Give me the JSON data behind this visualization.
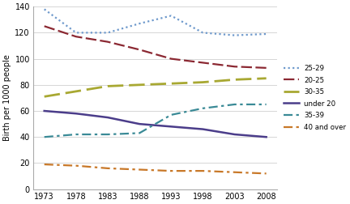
{
  "years": [
    1973,
    1978,
    1983,
    1988,
    1993,
    1998,
    2003,
    2008
  ],
  "series": {
    "25-29": {
      "values": [
        138,
        120,
        120,
        127,
        133,
        120,
        118,
        119
      ],
      "color": "#6e99cc",
      "linestyle": "dotted",
      "linewidth": 1.6
    },
    "20-25": {
      "values": [
        125,
        117,
        113,
        107,
        100,
        97,
        94,
        93
      ],
      "color": "#8b2832",
      "linestyle": "dashed",
      "linewidth": 1.6
    },
    "30-35": {
      "values": [
        71,
        75,
        79,
        80,
        81,
        82,
        84,
        85
      ],
      "color": "#a8a832",
      "linestyle": "dashed",
      "linewidth": 2.0
    },
    "under 20": {
      "values": [
        60,
        58,
        55,
        50,
        48,
        46,
        42,
        40
      ],
      "color": "#4b3d8a",
      "linestyle": "solid",
      "linewidth": 1.8
    },
    "35-39": {
      "values": [
        40,
        42,
        42,
        43,
        57,
        62,
        65,
        65
      ],
      "color": "#3a8a96",
      "linestyle": "dashdot",
      "linewidth": 1.6
    },
    "40 and over": {
      "values": [
        19,
        18,
        16,
        15,
        14,
        14,
        13,
        12
      ],
      "color": "#c87828",
      "linestyle": "dashdot",
      "linewidth": 1.6
    }
  },
  "ylabel": "Birth per 1000 people",
  "ylim": [
    0,
    140
  ],
  "yticks": [
    0,
    20,
    40,
    60,
    80,
    100,
    120,
    140
  ],
  "xticks": [
    1973,
    1978,
    1983,
    1988,
    1993,
    1998,
    2003,
    2008
  ],
  "background_color": "#ffffff",
  "grid_color": "#d0d0d0"
}
